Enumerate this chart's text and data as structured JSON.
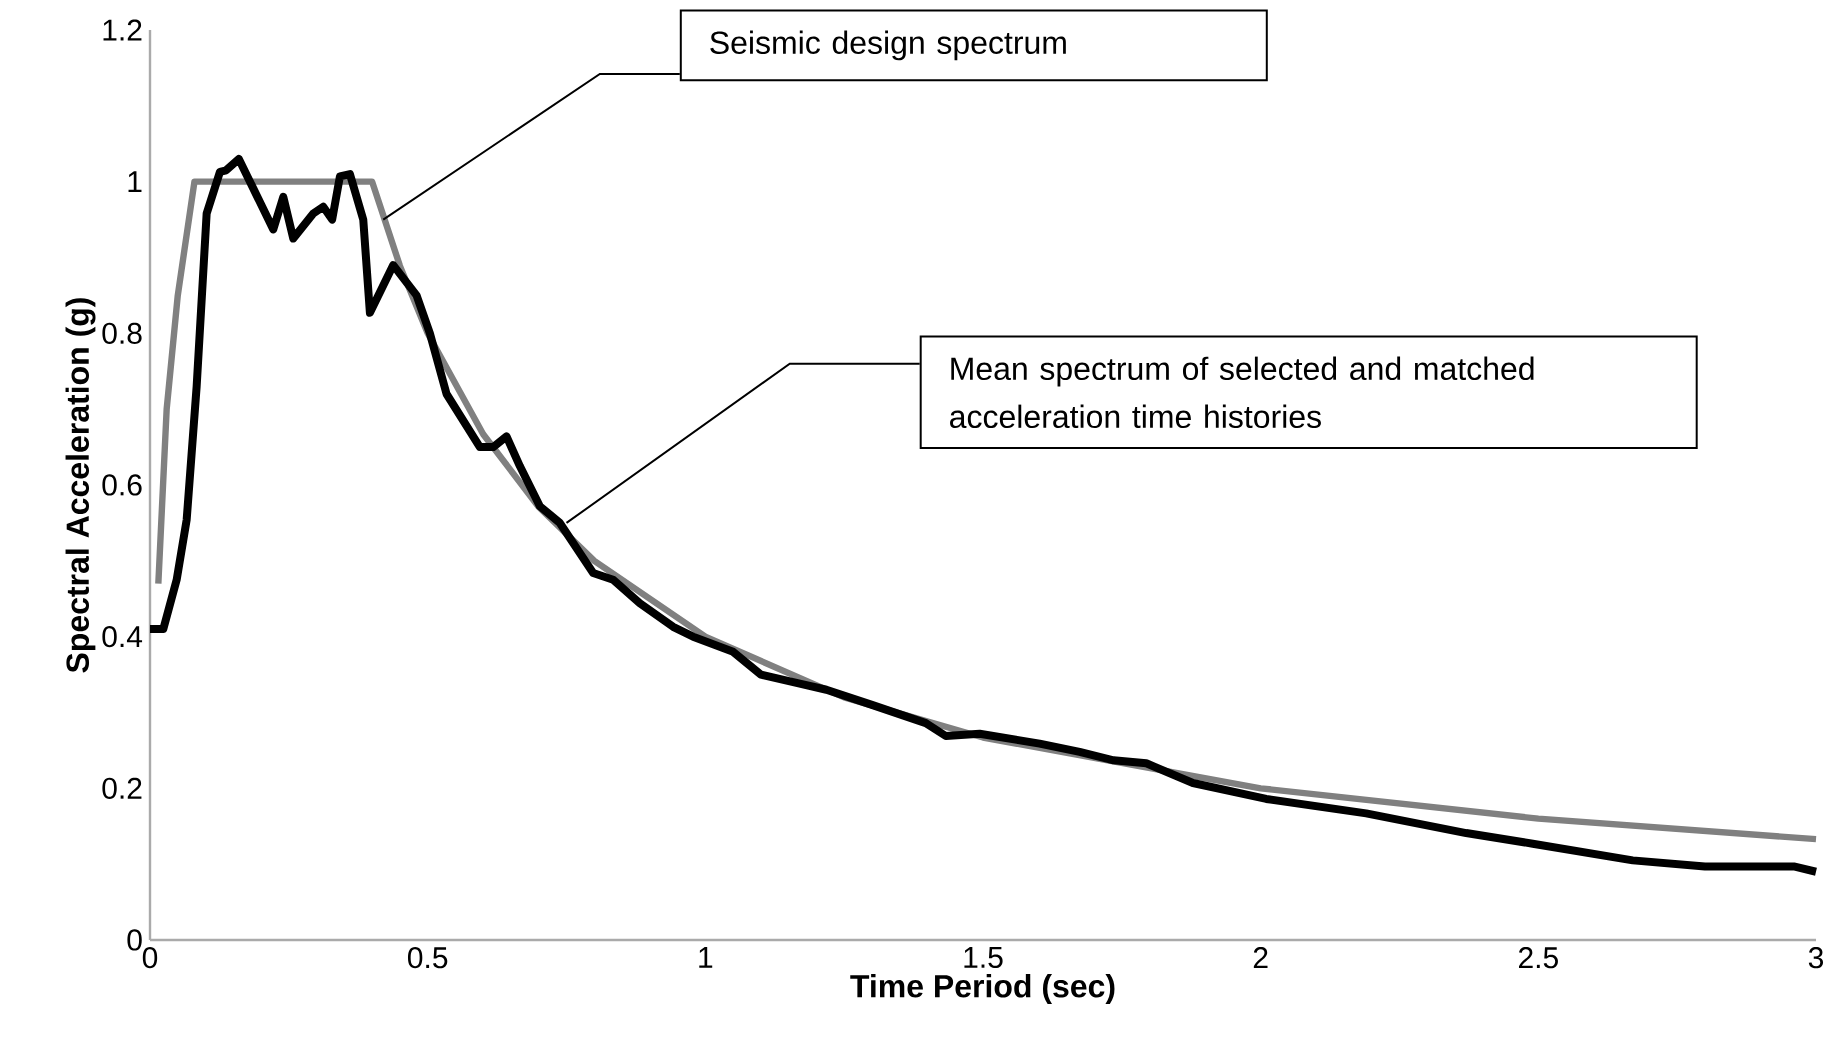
{
  "chart_data": {
    "type": "line",
    "xlabel": "Time Period (sec)",
    "ylabel": "Spectral Acceleration (g)",
    "xlim": [
      0,
      3
    ],
    "ylim": [
      0,
      1.2
    ],
    "xticks": [
      0,
      0.5,
      1,
      1.5,
      2,
      2.5,
      3
    ],
    "yticks": [
      0,
      0.2,
      0.4,
      0.6,
      0.8,
      1,
      1.2
    ],
    "marker": "none",
    "line_style": "solid",
    "series": [
      {
        "color": "#808080",
        "x": [
          0.015,
          0.03,
          0.05,
          0.08,
          0.4,
          0.45,
          0.5,
          0.6,
          0.7,
          0.8,
          1,
          1.25,
          1.5,
          2,
          2.5,
          3
        ],
        "values": [
          0.47,
          0.7,
          0.85,
          1,
          1,
          0.889,
          0.8,
          0.667,
          0.571,
          0.5,
          0.4,
          0.32,
          0.267,
          0.2,
          0.16,
          0.133
        ]
      },
      {
        "color": "#000000",
        "x": [
          0,
          0.024,
          0.048,
          0.066,
          0.084,
          0.102,
          0.126,
          0.137,
          0.16,
          0.222,
          0.24,
          0.258,
          0.294,
          0.312,
          0.328,
          0.342,
          0.36,
          0.384,
          0.396,
          0.438,
          0.48,
          0.504,
          0.534,
          0.594,
          0.618,
          0.642,
          0.666,
          0.702,
          0.738,
          0.798,
          0.834,
          0.882,
          0.942,
          0.978,
          1.05,
          1.1,
          1.17,
          1.218,
          1.3,
          1.397,
          1.433,
          1.494,
          1.602,
          1.674,
          1.735,
          1.794,
          1.878,
          2.01,
          2.19,
          2.37,
          2.49,
          2.67,
          2.8,
          2.96,
          3
        ],
        "values": [
          0.41,
          0.41,
          0.475,
          0.554,
          0.73,
          0.958,
          1.013,
          1.015,
          1.03,
          0.937,
          0.98,
          0.925,
          0.958,
          0.967,
          0.95,
          1.007,
          1.01,
          0.95,
          0.827,
          0.89,
          0.85,
          0.8,
          0.72,
          0.65,
          0.65,
          0.664,
          0.625,
          0.572,
          0.55,
          0.484,
          0.475,
          0.444,
          0.413,
          0.4,
          0.38,
          0.35,
          0.338,
          0.33,
          0.31,
          0.286,
          0.269,
          0.272,
          0.259,
          0.248,
          0.237,
          0.233,
          0.207,
          0.186,
          0.167,
          0.141,
          0.127,
          0.105,
          0.097,
          0.097,
          0.09
        ]
      }
    ],
    "annotations": [
      {
        "text": "Seismic design spectrum",
        "x": 0.42,
        "y": 0.95
      },
      {
        "text": "Mean spectrum of selected and matched acceleration time histories",
        "x": 0.75,
        "y": 0.55
      }
    ]
  }
}
